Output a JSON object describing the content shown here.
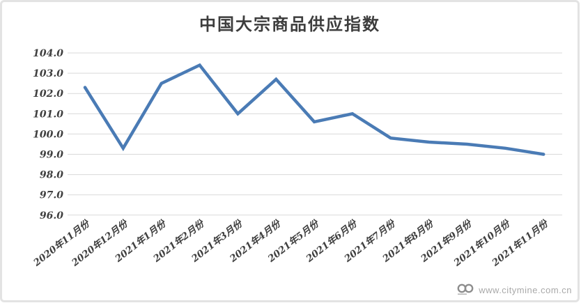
{
  "page": {
    "background": "#ffffff",
    "frame_border_color": "#e3e3e3"
  },
  "watermark": {
    "logo_icon": "two-circles-logo",
    "url_text": "www.citymine.com.cn",
    "text_color": "#a9a9a9"
  },
  "chart_data": {
    "type": "line",
    "title": "中国大宗商品供应指数",
    "categories": [
      "2020年11月份",
      "2020年12月份",
      "2021年1月份",
      "2021年2月份",
      "2021年3月份",
      "2021年4月份",
      "2021年5月份",
      "2021年6月份",
      "2021年7月份",
      "2021年8月份",
      "2021年9月份",
      "2021年10月份",
      "2021年11月份"
    ],
    "values": [
      102.3,
      99.3,
      102.5,
      103.4,
      101.0,
      102.7,
      100.6,
      101.0,
      99.8,
      99.6,
      99.5,
      99.3,
      99.0
    ],
    "xlabel": "",
    "ylabel": "",
    "ylim": [
      96.0,
      104.0
    ],
    "ytick_step": 1.0,
    "ytick_labels": [
      "96.0",
      "97.0",
      "98.0",
      "99.0",
      "100.0",
      "101.0",
      "102.0",
      "103.0",
      "104.0"
    ],
    "grid": true,
    "legend_position": "none",
    "line_color": "#4a7bb5",
    "gridline_color": "#d9d9d9",
    "tick_label_color": "#3f3f3f",
    "title_color": "#3d3d3d"
  }
}
